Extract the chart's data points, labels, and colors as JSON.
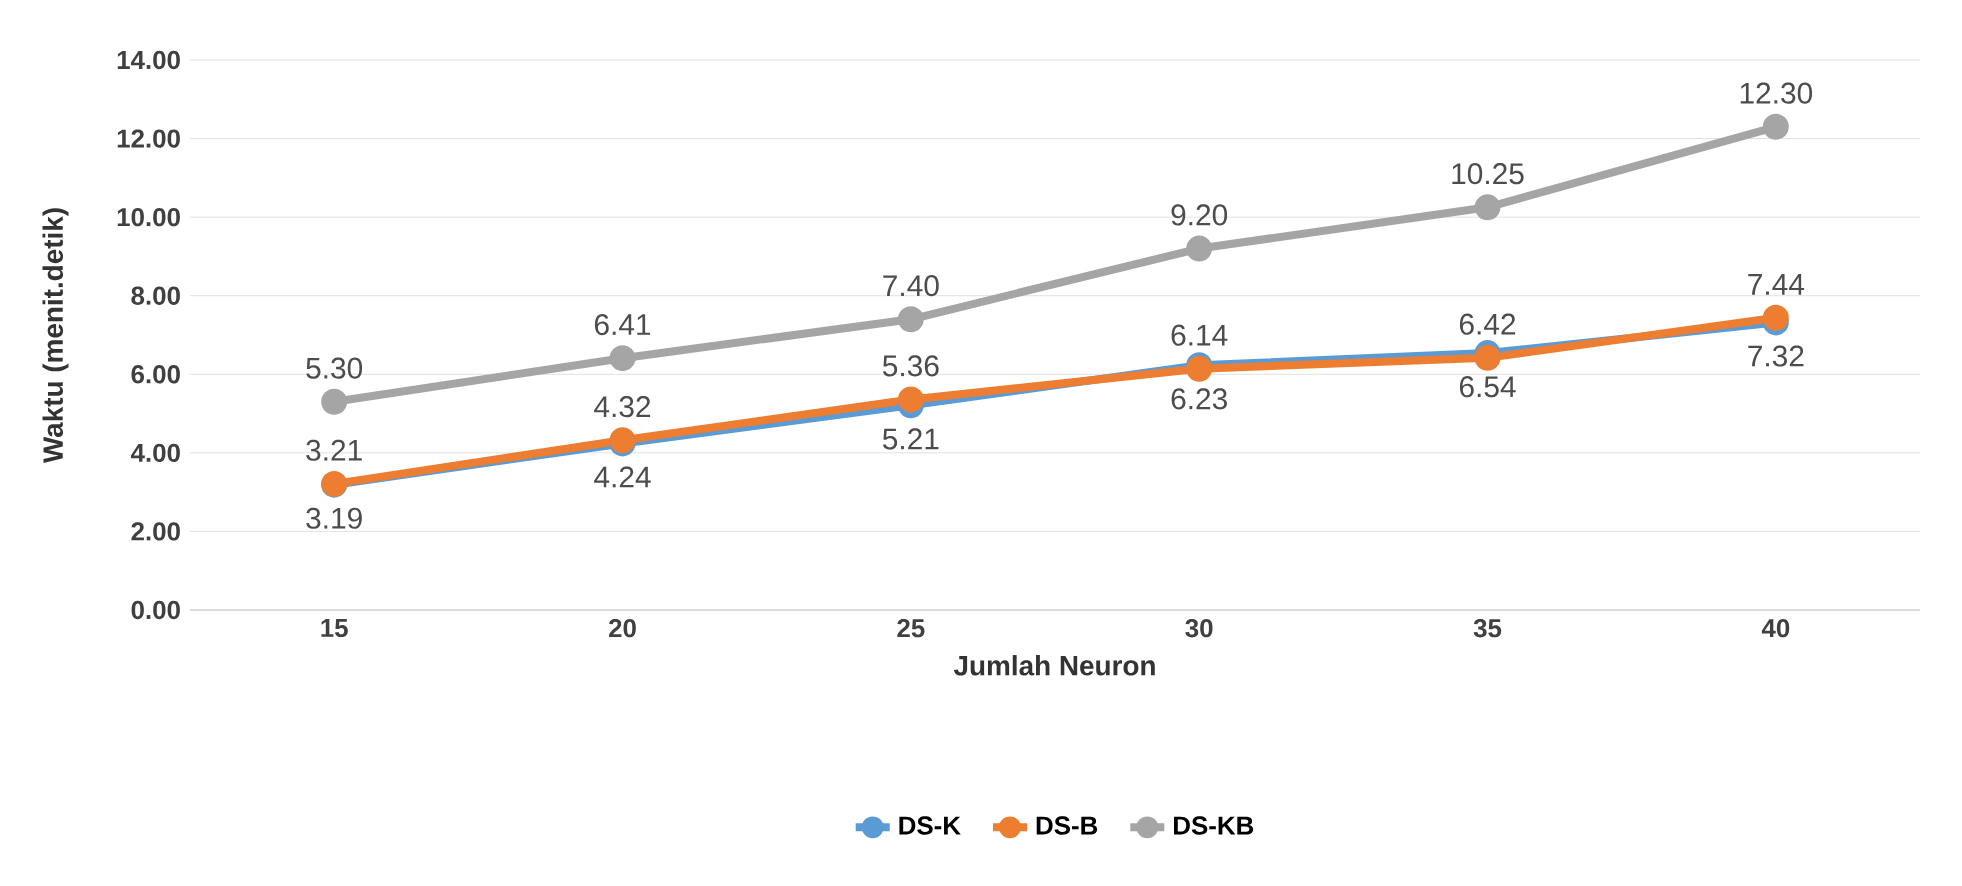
{
  "chart_data": {
    "type": "line",
    "xlabel": "Jumlah Neuron",
    "ylabel": "Waktu (menit.detik)",
    "categories": [
      "15",
      "20",
      "25",
      "30",
      "35",
      "40"
    ],
    "ylim": [
      0,
      14
    ],
    "yticks": [
      {
        "value": 0,
        "label": "0.00"
      },
      {
        "value": 2,
        "label": "2.00"
      },
      {
        "value": 4,
        "label": "4.00"
      },
      {
        "value": 6,
        "label": "6.00"
      },
      {
        "value": 8,
        "label": "8.00"
      },
      {
        "value": 10,
        "label": "10.00"
      },
      {
        "value": 12,
        "label": "12.00"
      },
      {
        "value": 14,
        "label": "14.00"
      }
    ],
    "grid": "y",
    "legend": "bottom",
    "marker": "circle",
    "line_style": "solid",
    "series": [
      {
        "name": "DS-K",
        "color": "#5b9bd5",
        "values": [
          3.19,
          4.24,
          5.21,
          6.23,
          6.54,
          7.32
        ],
        "value_labels": [
          "3.19",
          "4.24",
          "5.21",
          "6.23",
          "6.54",
          "7.32"
        ]
      },
      {
        "name": "DS-B",
        "color": "#ed7d31",
        "values": [
          3.21,
          4.32,
          5.36,
          6.14,
          6.42,
          7.44
        ],
        "value_labels": [
          "3.21",
          "4.32",
          "5.36",
          "6.14",
          "6.42",
          "7.44"
        ]
      },
      {
        "name": "DS-KB",
        "color": "#a5a5a5",
        "values": [
          5.3,
          6.41,
          7.4,
          9.2,
          10.25,
          12.3
        ],
        "value_labels": [
          "5.30",
          "6.41",
          "7.40",
          "9.20",
          "10.25",
          "12.30"
        ]
      }
    ]
  }
}
